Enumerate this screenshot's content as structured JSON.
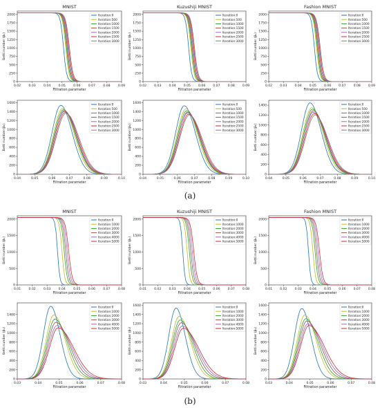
{
  "captions": {
    "a": "(a)",
    "b": "(b)"
  },
  "axis_labels": {
    "x": "Filtration parameter",
    "y_top": "Betti number (β₀)",
    "y_bottom": "Betti number (β₁)"
  },
  "palette": [
    "#1f77b4",
    "#bcbd22",
    "#2ca02c",
    "#8c564b",
    "#9467bd",
    "#d62728",
    "#7f7f7f"
  ],
  "chart_data": [
    {
      "panel": "a-top-mnist",
      "type": "line",
      "title": "MNIST",
      "xlabel": "Filtration parameter",
      "ylabel": "Betti number (β₀)",
      "xlim": [
        0.02,
        0.09
      ],
      "ylim": [
        0,
        2100
      ],
      "xticks": [
        0.02,
        0.03,
        0.04,
        0.05,
        0.06,
        0.07,
        0.08,
        0.09
      ],
      "yticks": [
        0,
        250,
        500,
        750,
        1000,
        1250,
        1500,
        1750,
        2000
      ],
      "series": [
        {
          "name": "Iteration:0",
          "shape": "sig",
          "x0": 0.051,
          "k": 95,
          "top": 2048
        },
        {
          "name": "Iteration:500",
          "shape": "sig",
          "x0": 0.0525,
          "k": 90,
          "top": 2048
        },
        {
          "name": "Iteration:1000",
          "shape": "sig",
          "x0": 0.053,
          "k": 88,
          "top": 2048
        },
        {
          "name": "Iteration:1500",
          "shape": "sig",
          "x0": 0.0535,
          "k": 86,
          "top": 2048
        },
        {
          "name": "Iteration:2000",
          "shape": "sig",
          "x0": 0.054,
          "k": 84,
          "top": 2048
        },
        {
          "name": "Iteration:2500",
          "shape": "sig",
          "x0": 0.0545,
          "k": 82,
          "top": 2048
        },
        {
          "name": "Iteration:3000",
          "shape": "sig",
          "x0": 0.055,
          "k": 80,
          "top": 2048
        }
      ]
    },
    {
      "panel": "a-top-kuzushiji",
      "type": "line",
      "title": "Kuzushiji MNIST",
      "xlabel": "Filtration parameter",
      "ylabel": "Betti number (β₀)",
      "xlim": [
        0.02,
        0.09
      ],
      "ylim": [
        0,
        2100
      ],
      "xticks": [
        0.02,
        0.03,
        0.04,
        0.05,
        0.06,
        0.07,
        0.08,
        0.09
      ],
      "yticks": [
        0,
        250,
        500,
        750,
        1000,
        1250,
        1500,
        1750,
        2000
      ],
      "series": [
        {
          "name": "Iteration:0",
          "shape": "sig",
          "x0": 0.051,
          "k": 95,
          "top": 2048
        },
        {
          "name": "Iteration:500",
          "shape": "sig",
          "x0": 0.0525,
          "k": 90,
          "top": 2048
        },
        {
          "name": "Iteration:1000",
          "shape": "sig",
          "x0": 0.053,
          "k": 88,
          "top": 2048
        },
        {
          "name": "Iteration:1500",
          "shape": "sig",
          "x0": 0.0535,
          "k": 86,
          "top": 2048
        },
        {
          "name": "Iteration:2000",
          "shape": "sig",
          "x0": 0.054,
          "k": 84,
          "top": 2048
        },
        {
          "name": "Iteration:2500",
          "shape": "sig",
          "x0": 0.0545,
          "k": 82,
          "top": 2048
        },
        {
          "name": "Iteration:3000",
          "shape": "sig",
          "x0": 0.055,
          "k": 80,
          "top": 2048
        }
      ]
    },
    {
      "panel": "a-top-fashion",
      "type": "line",
      "title": "Fashion MNIST",
      "xlabel": "Filtration parameter",
      "ylabel": "Betti number (β₀)",
      "xlim": [
        0.02,
        0.09
      ],
      "ylim": [
        0,
        2100
      ],
      "xticks": [
        0.02,
        0.03,
        0.04,
        0.05,
        0.06,
        0.07,
        0.08,
        0.09
      ],
      "yticks": [
        0,
        250,
        500,
        750,
        1000,
        1250,
        1500,
        1750,
        2000
      ],
      "series": [
        {
          "name": "Iteration:0",
          "shape": "sig",
          "x0": 0.051,
          "k": 95,
          "top": 2048
        },
        {
          "name": "Iteration:500",
          "shape": "sig",
          "x0": 0.0525,
          "k": 90,
          "top": 2048
        },
        {
          "name": "Iteration:1000",
          "shape": "sig",
          "x0": 0.053,
          "k": 88,
          "top": 2048
        },
        {
          "name": "Iteration:1500",
          "shape": "sig",
          "x0": 0.0535,
          "k": 86,
          "top": 2048
        },
        {
          "name": "Iteration:2000",
          "shape": "sig",
          "x0": 0.054,
          "k": 84,
          "top": 2048
        },
        {
          "name": "Iteration:2500",
          "shape": "sig",
          "x0": 0.0545,
          "k": 82,
          "top": 2048
        },
        {
          "name": "Iteration:3000",
          "shape": "sig",
          "x0": 0.055,
          "k": 80,
          "top": 2048
        }
      ]
    },
    {
      "panel": "a-bottom-mnist",
      "type": "line",
      "title": "",
      "xlabel": "Filtration parameter",
      "ylabel": "Betti number (β₁)",
      "xlim": [
        0.04,
        0.1
      ],
      "ylim": [
        0,
        1650
      ],
      "xticks": [
        0.04,
        0.05,
        0.06,
        0.07,
        0.08,
        0.09,
        0.1
      ],
      "yticks": [
        0,
        200,
        400,
        600,
        800,
        1000,
        1200,
        1400,
        1600
      ],
      "series": [
        {
          "name": "Iteration:0",
          "shape": "peak",
          "mu": 0.065,
          "sl": 0.005,
          "sr": 0.0065,
          "peak": 1540
        },
        {
          "name": "Iteration:500",
          "shape": "peak",
          "mu": 0.066,
          "sl": 0.0052,
          "sr": 0.0068,
          "peak": 1470
        },
        {
          "name": "Iteration:1000",
          "shape": "peak",
          "mu": 0.0665,
          "sl": 0.0053,
          "sr": 0.007,
          "peak": 1440
        },
        {
          "name": "Iteration:1500",
          "shape": "peak",
          "mu": 0.067,
          "sl": 0.0054,
          "sr": 0.007,
          "peak": 1420
        },
        {
          "name": "Iteration:2000",
          "shape": "peak",
          "mu": 0.067,
          "sl": 0.0055,
          "sr": 0.0072,
          "peak": 1400
        },
        {
          "name": "Iteration:2500",
          "shape": "peak",
          "mu": 0.0675,
          "sl": 0.0055,
          "sr": 0.0073,
          "peak": 1380
        },
        {
          "name": "Iteration:3000",
          "shape": "peak",
          "mu": 0.068,
          "sl": 0.0056,
          "sr": 0.0074,
          "peak": 1360
        }
      ]
    },
    {
      "panel": "a-bottom-kuzushiji",
      "type": "line",
      "title": "",
      "xlabel": "Filtration parameter",
      "ylabel": "Betti number (β₁)",
      "xlim": [
        0.04,
        0.1
      ],
      "ylim": [
        0,
        1650
      ],
      "xticks": [
        0.04,
        0.05,
        0.06,
        0.07,
        0.08,
        0.09,
        0.1
      ],
      "yticks": [
        0,
        200,
        400,
        600,
        800,
        1000,
        1200,
        1400,
        1600
      ],
      "series": [
        {
          "name": "Iteration:0",
          "shape": "peak",
          "mu": 0.064,
          "sl": 0.005,
          "sr": 0.0065,
          "peak": 1530
        },
        {
          "name": "Iteration:500",
          "shape": "peak",
          "mu": 0.065,
          "sl": 0.0052,
          "sr": 0.0068,
          "peak": 1460
        },
        {
          "name": "Iteration:1000",
          "shape": "peak",
          "mu": 0.0655,
          "sl": 0.0053,
          "sr": 0.007,
          "peak": 1420
        },
        {
          "name": "Iteration:1500",
          "shape": "peak",
          "mu": 0.066,
          "sl": 0.0054,
          "sr": 0.007,
          "peak": 1390
        },
        {
          "name": "Iteration:2000",
          "shape": "peak",
          "mu": 0.066,
          "sl": 0.0055,
          "sr": 0.0072,
          "peak": 1370
        },
        {
          "name": "Iteration:2500",
          "shape": "peak",
          "mu": 0.0665,
          "sl": 0.0055,
          "sr": 0.0073,
          "peak": 1340
        },
        {
          "name": "Iteration:3000",
          "shape": "peak",
          "mu": 0.067,
          "sl": 0.0056,
          "sr": 0.0074,
          "peak": 1320
        }
      ]
    },
    {
      "panel": "a-bottom-fashion",
      "type": "line",
      "title": "",
      "xlabel": "Filtration parameter",
      "ylabel": "Betti number (β₁)",
      "xlim": [
        0.04,
        0.1
      ],
      "ylim": [
        0,
        1500
      ],
      "xticks": [
        0.04,
        0.05,
        0.06,
        0.07,
        0.08,
        0.09,
        0.1
      ],
      "yticks": [
        0,
        200,
        400,
        600,
        800,
        1000,
        1200,
        1400
      ],
      "series": [
        {
          "name": "Iteration:0",
          "shape": "peak",
          "mu": 0.064,
          "sl": 0.005,
          "sr": 0.0065,
          "peak": 1450
        },
        {
          "name": "Iteration:500",
          "shape": "peak",
          "mu": 0.065,
          "sl": 0.0052,
          "sr": 0.0068,
          "peak": 1350
        },
        {
          "name": "Iteration:1000",
          "shape": "peak",
          "mu": 0.0655,
          "sl": 0.0053,
          "sr": 0.007,
          "peak": 1320
        },
        {
          "name": "Iteration:1500",
          "shape": "peak",
          "mu": 0.066,
          "sl": 0.0054,
          "sr": 0.007,
          "peak": 1290
        },
        {
          "name": "Iteration:2000",
          "shape": "peak",
          "mu": 0.066,
          "sl": 0.0055,
          "sr": 0.0072,
          "peak": 1260
        },
        {
          "name": "Iteration:2500",
          "shape": "peak",
          "mu": 0.0665,
          "sl": 0.0055,
          "sr": 0.0073,
          "peak": 1230
        },
        {
          "name": "Iteration:3000",
          "shape": "peak",
          "mu": 0.067,
          "sl": 0.0056,
          "sr": 0.0074,
          "peak": 1200
        }
      ]
    },
    {
      "panel": "b-top-mnist",
      "type": "line",
      "title": "MNIST",
      "xlabel": "Filtration parameter",
      "ylabel": "Betti number (β₀)",
      "xlim": [
        0.01,
        0.08
      ],
      "ylim": [
        0,
        2100
      ],
      "xticks": [
        0.01,
        0.02,
        0.03,
        0.04,
        0.05,
        0.06,
        0.07,
        0.08
      ],
      "yticks": [
        0,
        500,
        1000,
        1500,
        2000
      ],
      "series": [
        {
          "name": "Iteration:0",
          "shape": "sig",
          "x0": 0.037,
          "k": 130,
          "top": 2048
        },
        {
          "name": "Iteration:1000",
          "shape": "sig",
          "x0": 0.04,
          "k": 110,
          "top": 2048
        },
        {
          "name": "Iteration:2000",
          "shape": "sig",
          "x0": 0.0415,
          "k": 100,
          "top": 2048
        },
        {
          "name": "Iteration:3000",
          "shape": "sig",
          "x0": 0.0425,
          "k": 95,
          "top": 2048
        },
        {
          "name": "Iteration:4000",
          "shape": "sig",
          "x0": 0.0435,
          "k": 90,
          "top": 2048
        },
        {
          "name": "Iteration:5000",
          "shape": "sig",
          "x0": 0.0445,
          "k": 85,
          "top": 2048
        }
      ]
    },
    {
      "panel": "b-top-kuzushiji",
      "type": "line",
      "title": "Kuzushiji MNIST",
      "xlabel": "Filtration parameter",
      "ylabel": "Betti number (β₀)",
      "xlim": [
        0.01,
        0.08
      ],
      "ylim": [
        0,
        2100
      ],
      "xticks": [
        0.01,
        0.02,
        0.03,
        0.04,
        0.05,
        0.06,
        0.07,
        0.08
      ],
      "yticks": [
        0,
        500,
        1000,
        1500,
        2000
      ],
      "series": [
        {
          "name": "Iteration:0",
          "shape": "sig",
          "x0": 0.037,
          "k": 130,
          "top": 2048
        },
        {
          "name": "Iteration:1000",
          "shape": "sig",
          "x0": 0.04,
          "k": 110,
          "top": 2048
        },
        {
          "name": "Iteration:2000",
          "shape": "sig",
          "x0": 0.0415,
          "k": 100,
          "top": 2048
        },
        {
          "name": "Iteration:3000",
          "shape": "sig",
          "x0": 0.0425,
          "k": 95,
          "top": 2048
        },
        {
          "name": "Iteration:4000",
          "shape": "sig",
          "x0": 0.0435,
          "k": 90,
          "top": 2048
        },
        {
          "name": "Iteration:5000",
          "shape": "sig",
          "x0": 0.0445,
          "k": 85,
          "top": 2048
        }
      ]
    },
    {
      "panel": "b-top-fashion",
      "type": "line",
      "title": "Fashion MNIST",
      "xlabel": "Filtration parameter",
      "ylabel": "Betti number (β₀)",
      "xlim": [
        0.01,
        0.08
      ],
      "ylim": [
        0,
        2100
      ],
      "xticks": [
        0.01,
        0.02,
        0.03,
        0.04,
        0.05,
        0.06,
        0.07,
        0.08
      ],
      "yticks": [
        0,
        500,
        1000,
        1500,
        2000
      ],
      "series": [
        {
          "name": "Iteration:0",
          "shape": "sig",
          "x0": 0.037,
          "k": 130,
          "top": 2048
        },
        {
          "name": "Iteration:1000",
          "shape": "sig",
          "x0": 0.04,
          "k": 110,
          "top": 2048
        },
        {
          "name": "Iteration:2000",
          "shape": "sig",
          "x0": 0.0415,
          "k": 100,
          "top": 2048
        },
        {
          "name": "Iteration:3000",
          "shape": "sig",
          "x0": 0.0425,
          "k": 95,
          "top": 2048
        },
        {
          "name": "Iteration:4000",
          "shape": "sig",
          "x0": 0.0435,
          "k": 90,
          "top": 2048
        },
        {
          "name": "Iteration:5000",
          "shape": "sig",
          "x0": 0.0445,
          "k": 85,
          "top": 2048
        }
      ]
    },
    {
      "panel": "b-bottom-mnist",
      "type": "line",
      "title": "",
      "xlabel": "Filtration parameter",
      "ylabel": "Betti number (β₁)",
      "xlim": [
        0.03,
        0.08
      ],
      "ylim": [
        0,
        1650
      ],
      "xticks": [
        0.03,
        0.04,
        0.05,
        0.06,
        0.07,
        0.08
      ],
      "yticks": [
        0,
        200,
        400,
        600,
        800,
        1000,
        1200,
        1400
      ],
      "series": [
        {
          "name": "Iteration:0",
          "shape": "peak",
          "mu": 0.046,
          "sl": 0.0035,
          "sr": 0.0045,
          "peak": 1580
        },
        {
          "name": "Iteration:1000",
          "shape": "peak",
          "mu": 0.0475,
          "sl": 0.0037,
          "sr": 0.0055,
          "peak": 1390
        },
        {
          "name": "Iteration:2000",
          "shape": "peak",
          "mu": 0.048,
          "sl": 0.0038,
          "sr": 0.006,
          "peak": 1300
        },
        {
          "name": "Iteration:3000",
          "shape": "peak",
          "mu": 0.0485,
          "sl": 0.0039,
          "sr": 0.0065,
          "peak": 1230
        },
        {
          "name": "Iteration:4000",
          "shape": "peak",
          "mu": 0.049,
          "sl": 0.004,
          "sr": 0.007,
          "peak": 1160
        },
        {
          "name": "Iteration:5000",
          "shape": "peak",
          "mu": 0.0495,
          "sl": 0.0041,
          "sr": 0.0075,
          "peak": 1110
        }
      ]
    },
    {
      "panel": "b-bottom-kuzushiji",
      "type": "line",
      "title": "",
      "xlabel": "Filtration parameter",
      "ylabel": "Betti number (β₁)",
      "xlim": [
        0.03,
        0.08
      ],
      "ylim": [
        0,
        1650
      ],
      "xticks": [
        0.03,
        0.04,
        0.05,
        0.06,
        0.07,
        0.08
      ],
      "yticks": [
        0,
        200,
        400,
        600,
        800,
        1000,
        1200,
        1400,
        1600
      ],
      "series": [
        {
          "name": "Iteration:0",
          "shape": "peak",
          "mu": 0.046,
          "sl": 0.0035,
          "sr": 0.0045,
          "peak": 1540
        },
        {
          "name": "Iteration:1000",
          "shape": "peak",
          "mu": 0.0475,
          "sl": 0.0037,
          "sr": 0.0055,
          "peak": 1360
        },
        {
          "name": "Iteration:2000",
          "shape": "peak",
          "mu": 0.048,
          "sl": 0.0038,
          "sr": 0.006,
          "peak": 1280
        },
        {
          "name": "Iteration:3000",
          "shape": "peak",
          "mu": 0.0485,
          "sl": 0.0039,
          "sr": 0.0065,
          "peak": 1220
        },
        {
          "name": "Iteration:4000",
          "shape": "peak",
          "mu": 0.049,
          "sl": 0.004,
          "sr": 0.007,
          "peak": 1150
        },
        {
          "name": "Iteration:5000",
          "shape": "peak",
          "mu": 0.0495,
          "sl": 0.0041,
          "sr": 0.0075,
          "peak": 1100
        }
      ]
    },
    {
      "panel": "b-bottom-fashion",
      "type": "line",
      "title": "",
      "xlabel": "Filtration parameter",
      "ylabel": "Betti number (β₁)",
      "xlim": [
        0.03,
        0.08
      ],
      "ylim": [
        0,
        1650
      ],
      "xticks": [
        0.03,
        0.04,
        0.05,
        0.06,
        0.07,
        0.08
      ],
      "yticks": [
        0,
        200,
        400,
        600,
        800,
        1000,
        1200,
        1400,
        1600
      ],
      "series": [
        {
          "name": "Iteration:0",
          "shape": "peak",
          "mu": 0.046,
          "sl": 0.0035,
          "sr": 0.0045,
          "peak": 1530
        },
        {
          "name": "Iteration:1000",
          "shape": "peak",
          "mu": 0.0475,
          "sl": 0.0037,
          "sr": 0.0055,
          "peak": 1390
        },
        {
          "name": "Iteration:2000",
          "shape": "peak",
          "mu": 0.048,
          "sl": 0.0038,
          "sr": 0.006,
          "peak": 1310
        },
        {
          "name": "Iteration:3000",
          "shape": "peak",
          "mu": 0.0485,
          "sl": 0.0039,
          "sr": 0.0065,
          "peak": 1260
        },
        {
          "name": "Iteration:4000",
          "shape": "peak",
          "mu": 0.049,
          "sl": 0.004,
          "sr": 0.007,
          "peak": 1200
        },
        {
          "name": "Iteration:5000",
          "shape": "peak",
          "mu": 0.0495,
          "sl": 0.0041,
          "sr": 0.0075,
          "peak": 1160
        }
      ]
    }
  ]
}
